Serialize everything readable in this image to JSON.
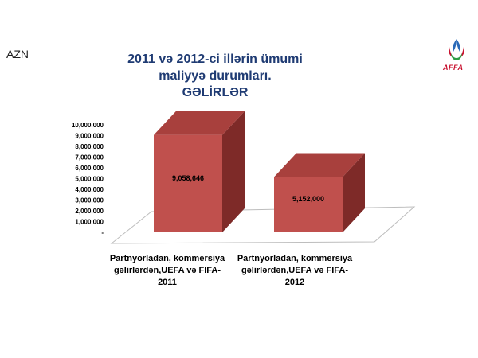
{
  "header": {
    "unit": "AZN",
    "title_lines": [
      "2011 və 2012-ci illərin ümumi",
      "maliyyə durumları.",
      "GƏLİRLƏR"
    ],
    "logo_text": "AFFA"
  },
  "chart_data": {
    "type": "bar",
    "title": "2011 və 2012-ci illərin ümumi maliyyə durumları. GƏLİRLƏR",
    "categories": [
      [
        "Partnyorladan, kommersiya",
        "gəlirlərdən,UEFA və FIFA-",
        "2011"
      ],
      [
        "Partnyorladan, kommersiya",
        "gəlirlərdən,UEFA və FIFA-",
        "2012"
      ]
    ],
    "values": [
      9058646,
      5152000
    ],
    "data_labels": [
      "9,058,646",
      "5,152,000"
    ],
    "ylim": [
      0,
      10000000
    ],
    "yticks": [
      "-",
      "1,000,000",
      "2,000,000",
      "3,000,000",
      "4,000,000",
      "5,000,000",
      "6,000,000",
      "7,000,000",
      "8,000,000",
      "9,000,000",
      "10,000,000"
    ],
    "colors": {
      "bar_front": "#c0504d",
      "bar_top": "#a8403d",
      "bar_side": "#7e2a28"
    }
  }
}
